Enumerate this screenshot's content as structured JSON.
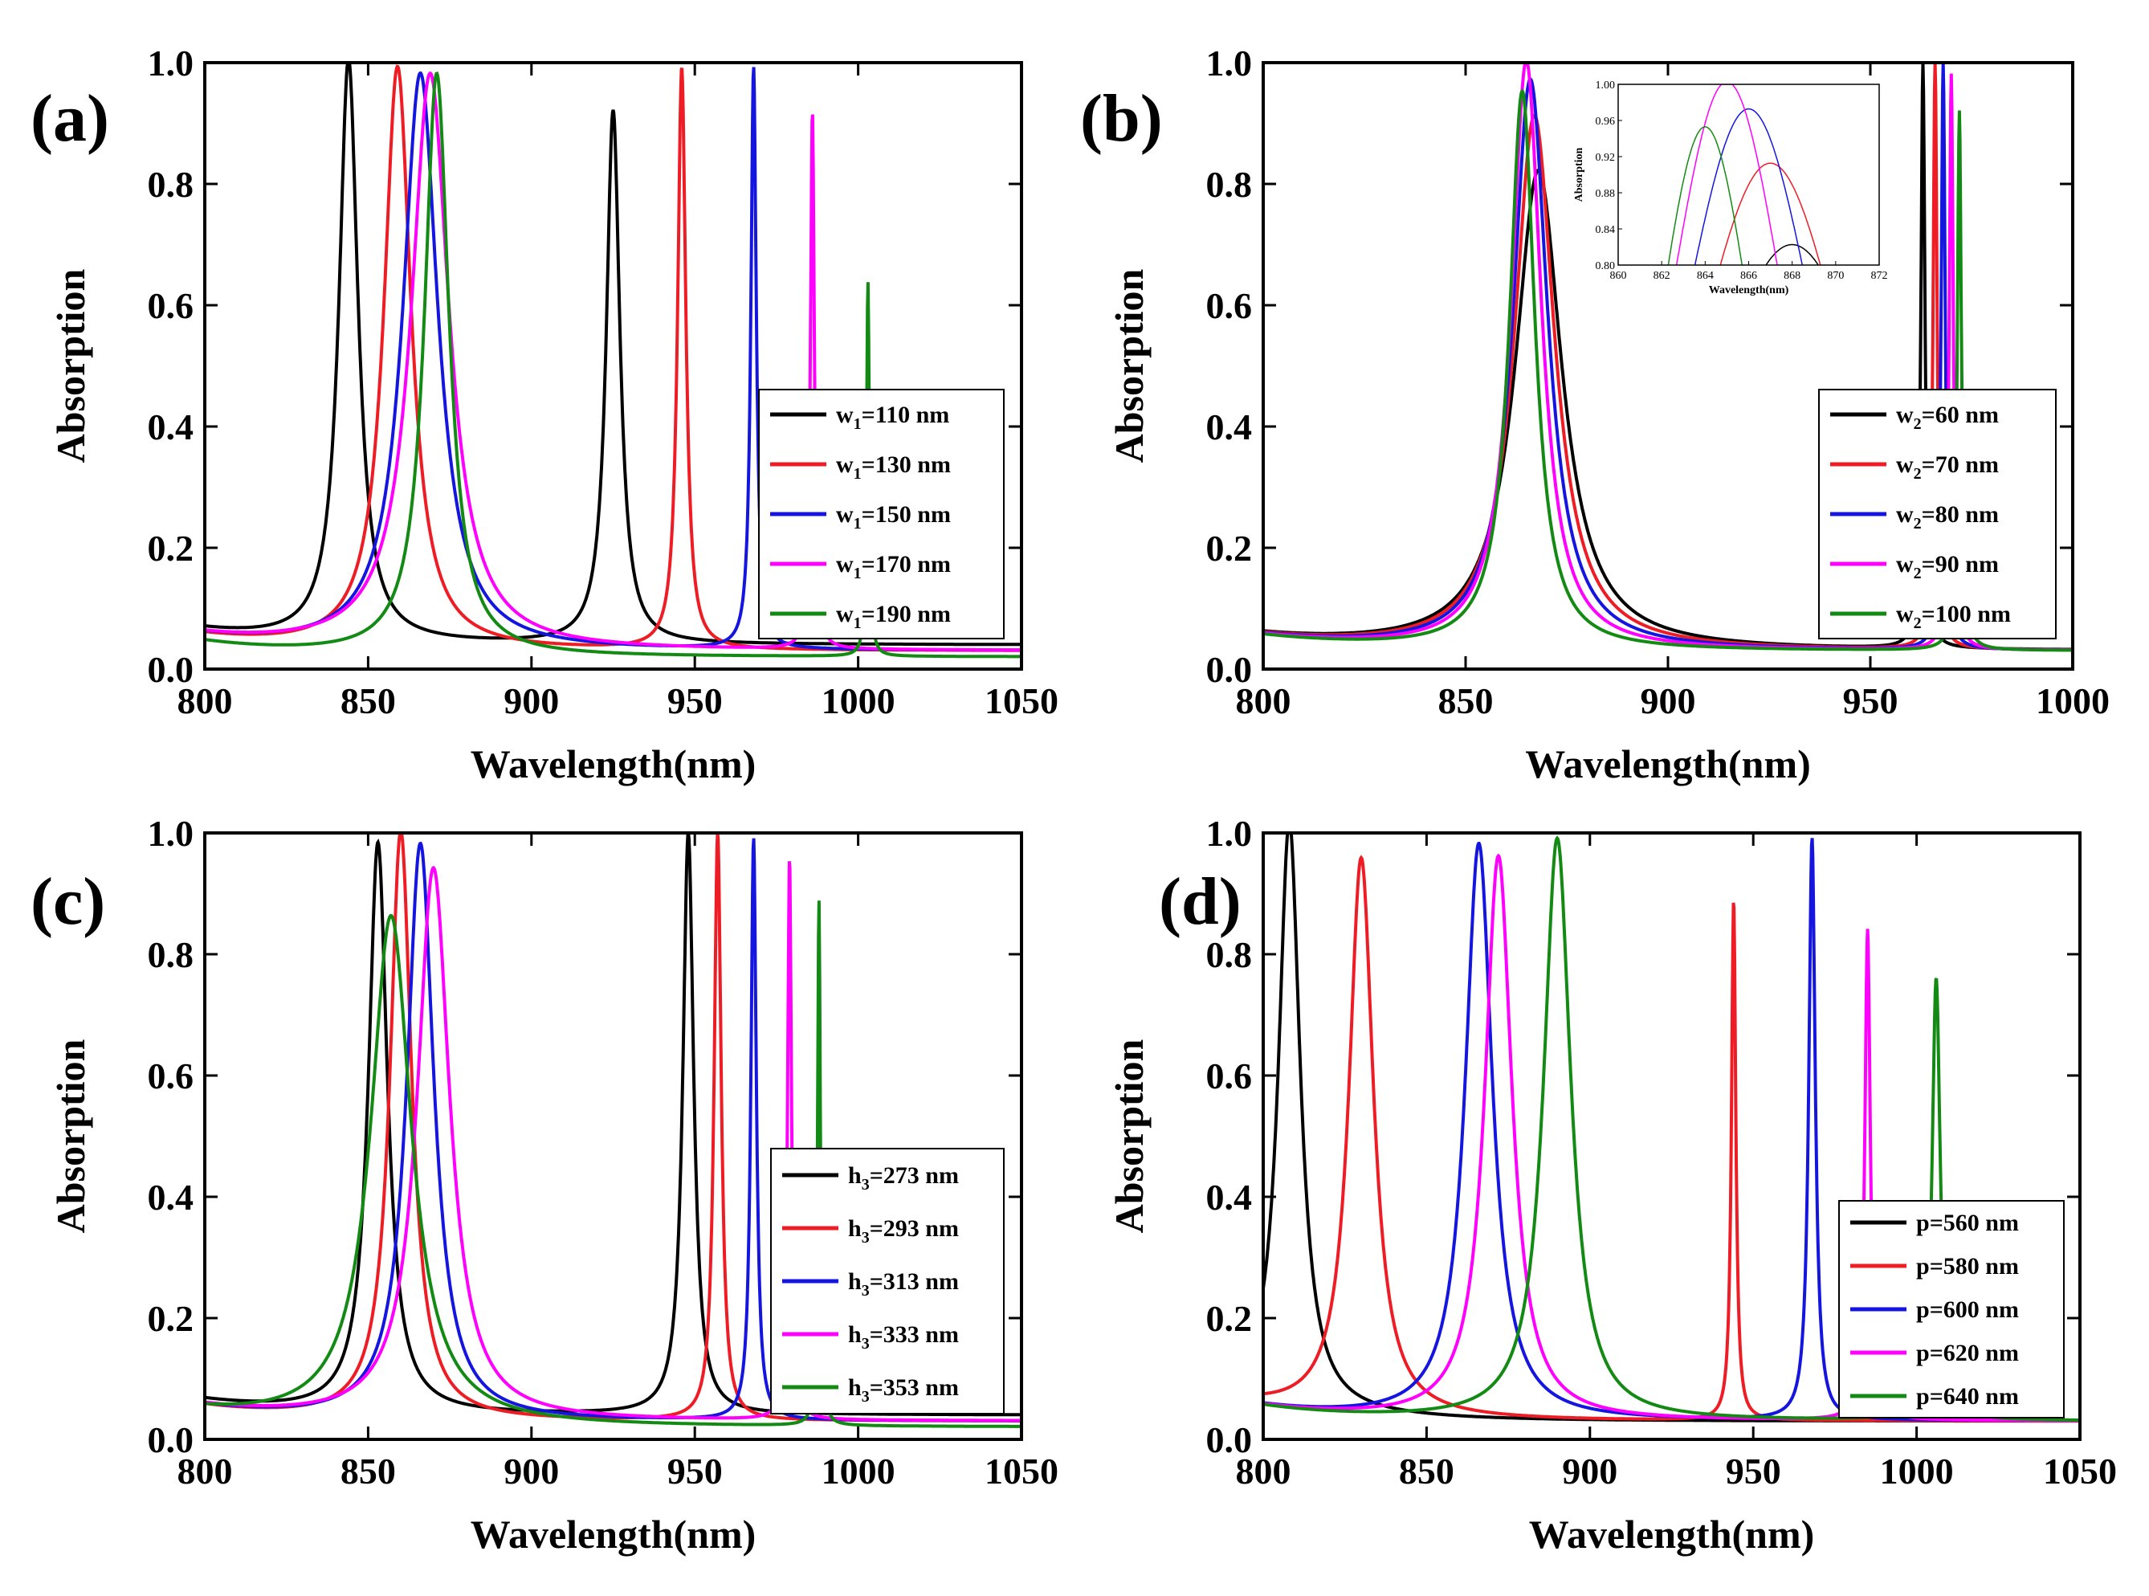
{
  "chart_data": [
    {
      "type": "line",
      "panel": "(a)",
      "xlabel": "Wavelength(nm)",
      "ylabel": "Absorption",
      "xlim": [
        800,
        1050
      ],
      "ylim": [
        0.0,
        1.0
      ],
      "xticks": [
        "800",
        "850",
        "900",
        "950",
        "1000",
        "1050"
      ],
      "yticks": [
        "0.0",
        "0.2",
        "0.4",
        "0.6",
        "0.8",
        "1.0"
      ],
      "legend_position": "lower-right",
      "legend_var": "w",
      "legend_sub": "1",
      "series": [
        {
          "label_value": "=110 nm",
          "color": "#000000",
          "baseline": 0.04,
          "peaks": [
            [
              844,
              1.0,
              3.5
            ],
            [
              925,
              0.92,
              2.5
            ]
          ]
        },
        {
          "label_value": "=130 nm",
          "color": "#ee1c24",
          "baseline": 0.03,
          "peaks": [
            [
              859,
              0.99,
              5.0
            ],
            [
              946,
              0.99,
              1.5
            ]
          ]
        },
        {
          "label_value": "=150 nm",
          "color": "#1515e0",
          "baseline": 0.03,
          "peaks": [
            [
              866,
              0.98,
              6.5
            ],
            [
              968,
              0.99,
              1.0
            ]
          ]
        },
        {
          "label_value": "=170 nm",
          "color": "#ff00ff",
          "baseline": 0.03,
          "peaks": [
            [
              869,
              0.98,
              7.0
            ],
            [
              986,
              0.92,
              0.7
            ]
          ]
        },
        {
          "label_value": "=190 nm",
          "color": "#138a13",
          "baseline": 0.02,
          "peaks": [
            [
              871,
              0.98,
              4.5
            ],
            [
              1003,
              0.64,
              0.5
            ]
          ]
        }
      ]
    },
    {
      "type": "line",
      "panel": "(b)",
      "xlabel": "Wavelength(nm)",
      "ylabel": "Absorption",
      "xlim": [
        800,
        1000
      ],
      "ylim": [
        0.0,
        1.0
      ],
      "xticks": [
        "800",
        "850",
        "900",
        "950",
        "1000"
      ],
      "yticks": [
        "0.0",
        "0.2",
        "0.4",
        "0.6",
        "0.8",
        "1.0"
      ],
      "legend_position": "lower-right",
      "legend_var": "w",
      "legend_sub": "2",
      "series": [
        {
          "label_value": "=60 nm",
          "color": "#000000",
          "baseline": 0.03,
          "peaks": [
            [
              868,
              0.82,
              7.0
            ],
            [
              963,
              1.0,
              0.6
            ]
          ]
        },
        {
          "label_value": "=70 nm",
          "color": "#ee1c24",
          "baseline": 0.03,
          "peaks": [
            [
              867,
              0.91,
              6.0
            ],
            [
              966,
              1.0,
              0.6
            ]
          ]
        },
        {
          "label_value": "=80 nm",
          "color": "#1515e0",
          "baseline": 0.03,
          "peaks": [
            [
              866,
              0.97,
              5.2
            ],
            [
              968,
              1.0,
              0.6
            ]
          ]
        },
        {
          "label_value": "=90 nm",
          "color": "#ff00ff",
          "baseline": 0.03,
          "peaks": [
            [
              865,
              1.0,
              4.5
            ],
            [
              970,
              0.98,
              0.6
            ]
          ]
        },
        {
          "label_value": "=100 nm",
          "color": "#138a13",
          "baseline": 0.03,
          "peaks": [
            [
              864,
              0.95,
              3.8
            ],
            [
              972,
              0.92,
              0.6
            ]
          ]
        }
      ],
      "inset": {
        "xlabel": "Wavelength(nm)",
        "ylabel": "Absorption",
        "xlim": [
          860,
          872
        ],
        "ylim": [
          0.8,
          1.0
        ],
        "xticks": [
          "860",
          "862",
          "864",
          "866",
          "868",
          "870",
          "872"
        ],
        "yticks": [
          "0.80",
          "0.84",
          "0.88",
          "0.92",
          "0.96",
          "1.00"
        ]
      }
    },
    {
      "type": "line",
      "panel": "(c)",
      "xlabel": "Wavelength(nm)",
      "ylabel": "Absorption",
      "xlim": [
        800,
        1050
      ],
      "ylim": [
        0.0,
        1.0
      ],
      "xticks": [
        "800",
        "850",
        "900",
        "950",
        "1000",
        "1050"
      ],
      "yticks": [
        "0.0",
        "0.2",
        "0.4",
        "0.6",
        "0.8",
        "1.0"
      ],
      "legend_position": "lower-right",
      "legend_var": "h",
      "legend_sub": "3",
      "series": [
        {
          "label_value": "=273 nm",
          "color": "#000000",
          "baseline": 0.04,
          "peaks": [
            [
              853,
              0.98,
              3.5
            ],
            [
              948,
              1.0,
              2.0
            ]
          ]
        },
        {
          "label_value": "=293 nm",
          "color": "#ee1c24",
          "baseline": 0.03,
          "peaks": [
            [
              860,
              1.0,
              4.0
            ],
            [
              957,
              1.0,
              1.3
            ]
          ]
        },
        {
          "label_value": "=313 nm",
          "color": "#1515e0",
          "baseline": 0.03,
          "peaks": [
            [
              866,
              0.98,
              5.0
            ],
            [
              968,
              0.99,
              1.0
            ]
          ]
        },
        {
          "label_value": "=333 nm",
          "color": "#ff00ff",
          "baseline": 0.03,
          "peaks": [
            [
              870,
              0.94,
              6.0
            ],
            [
              979,
              0.96,
              0.7
            ]
          ]
        },
        {
          "label_value": "=353 nm",
          "color": "#138a13",
          "baseline": 0.02,
          "peaks": [
            [
              857,
              0.86,
              7.5
            ],
            [
              988,
              0.89,
              0.5
            ]
          ]
        }
      ]
    },
    {
      "type": "line",
      "panel": "(d)",
      "xlabel": "Wavelength(nm)",
      "ylabel": "Absorption",
      "xlim": [
        800,
        1050
      ],
      "ylim": [
        0.0,
        1.0
      ],
      "xticks": [
        "800",
        "850",
        "900",
        "950",
        "1000",
        "1050"
      ],
      "yticks": [
        "0.0",
        "0.2",
        "0.4",
        "0.6",
        "0.8",
        "1.0"
      ],
      "legend_position": "lower-right",
      "legend_var": "p",
      "legend_sub": "",
      "series": [
        {
          "label_value": "=560 nm",
          "color": "#000000",
          "baseline": 0.03,
          "peaks": [
            [
              808,
              1.0,
              4.0
            ]
          ]
        },
        {
          "label_value": "=580 nm",
          "color": "#ee1c24",
          "baseline": 0.03,
          "peaks": [
            [
              830,
              0.95,
              4.5
            ],
            [
              944,
              0.89,
              0.8
            ]
          ]
        },
        {
          "label_value": "=600 nm",
          "color": "#1515e0",
          "baseline": 0.03,
          "peaks": [
            [
              866,
              0.98,
              5.0
            ],
            [
              968,
              0.99,
              1.2
            ]
          ]
        },
        {
          "label_value": "=620 nm",
          "color": "#ff00ff",
          "baseline": 0.03,
          "peaks": [
            [
              872,
              0.96,
              5.0
            ],
            [
              985,
              0.84,
              1.0
            ]
          ]
        },
        {
          "label_value": "=640 nm",
          "color": "#138a13",
          "baseline": 0.03,
          "peaks": [
            [
              890,
              0.99,
              5.0
            ],
            [
              1006,
              0.76,
              1.5
            ]
          ]
        }
      ]
    }
  ]
}
